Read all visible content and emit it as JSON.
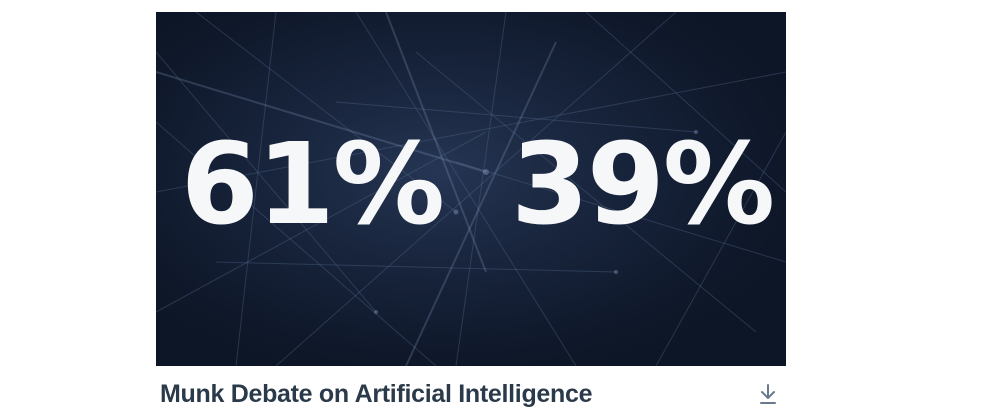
{
  "media": {
    "stats": [
      {
        "value": "61%"
      },
      {
        "value": "39%"
      }
    ],
    "background": "network-lines-image"
  },
  "caption": {
    "title": "Munk Debate on Artificial Intelligence",
    "download_icon": "download-icon"
  },
  "colors": {
    "media_bg": "#0d1626",
    "stat_text": "#f6f7f9",
    "title_text": "#2b3a4a",
    "icon": "#6a7a8c"
  }
}
